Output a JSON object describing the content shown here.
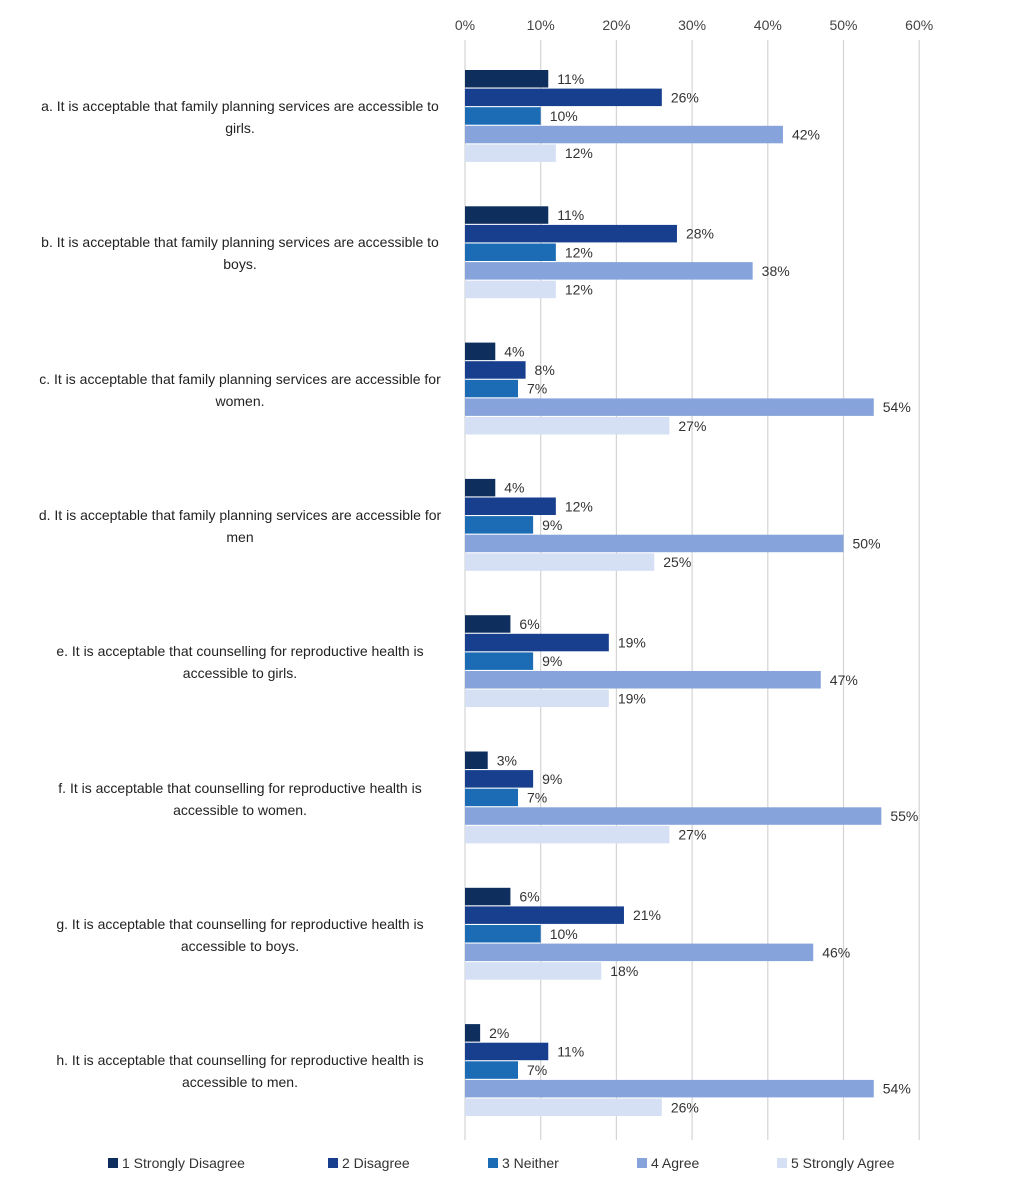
{
  "chart_data": {
    "type": "bar",
    "orientation": "horizontal",
    "title": "",
    "xlabel": "",
    "ylabel": "",
    "xlim": [
      0,
      60
    ],
    "ticks": [
      "0%",
      "10%",
      "20%",
      "30%",
      "40%",
      "50%",
      "60%"
    ],
    "tick_values": [
      0,
      10,
      20,
      30,
      40,
      50,
      60
    ],
    "x_axis_position": "top",
    "grid": true,
    "legend_position": "bottom",
    "categories": [
      "a. It is acceptable that family planning services are accessible to girls.",
      "b. It is acceptable that family planning services are accessible to boys.",
      "c. It is acceptable that family planning services are accessible for women.",
      "d. It is acceptable that family planning services are accessible for men",
      "e. It is acceptable that counselling for reproductive health is accessible to girls.",
      "f. It is acceptable that counselling for reproductive health is accessible to women.",
      "g. It is acceptable that counselling for reproductive health is accessible to boys.",
      "h. It is acceptable that counselling for reproductive health is accessible to men."
    ],
    "category_lines": [
      [
        "a. It is acceptable that family planning services are accessible to",
        "girls."
      ],
      [
        "b. It is acceptable that family planning services are accessible to",
        "boys."
      ],
      [
        "c. It is acceptable that family planning services are accessible for",
        "women."
      ],
      [
        "d. It is acceptable that family planning services are accessible for",
        "men"
      ],
      [
        "e. It is acceptable that counselling for reproductive health is",
        "accessible to girls."
      ],
      [
        "f. It is acceptable that counselling for reproductive health is",
        "accessible to women."
      ],
      [
        "g. It is acceptable that counselling for reproductive health is",
        "accessible to boys."
      ],
      [
        "h. It is acceptable that counselling for reproductive health is",
        "accessible to men."
      ]
    ],
    "series": [
      {
        "name": "1 Strongly Disagree",
        "color": "#0e2f5e",
        "values": [
          11,
          11,
          4,
          4,
          6,
          3,
          6,
          2
        ]
      },
      {
        "name": "2 Disagree",
        "color": "#173f8d",
        "values": [
          26,
          28,
          8,
          12,
          19,
          9,
          21,
          11
        ]
      },
      {
        "name": "3 Neither",
        "color": "#1c6bb5",
        "values": [
          10,
          12,
          7,
          9,
          9,
          7,
          10,
          7
        ]
      },
      {
        "name": "4 Agree",
        "color": "#86a4db",
        "values": [
          42,
          38,
          54,
          50,
          47,
          55,
          46,
          54
        ]
      },
      {
        "name": "5 Strongly Agree",
        "color": "#d6e0f4",
        "values": [
          12,
          12,
          27,
          25,
          19,
          27,
          18,
          26
        ]
      }
    ],
    "value_suffix": "%"
  }
}
